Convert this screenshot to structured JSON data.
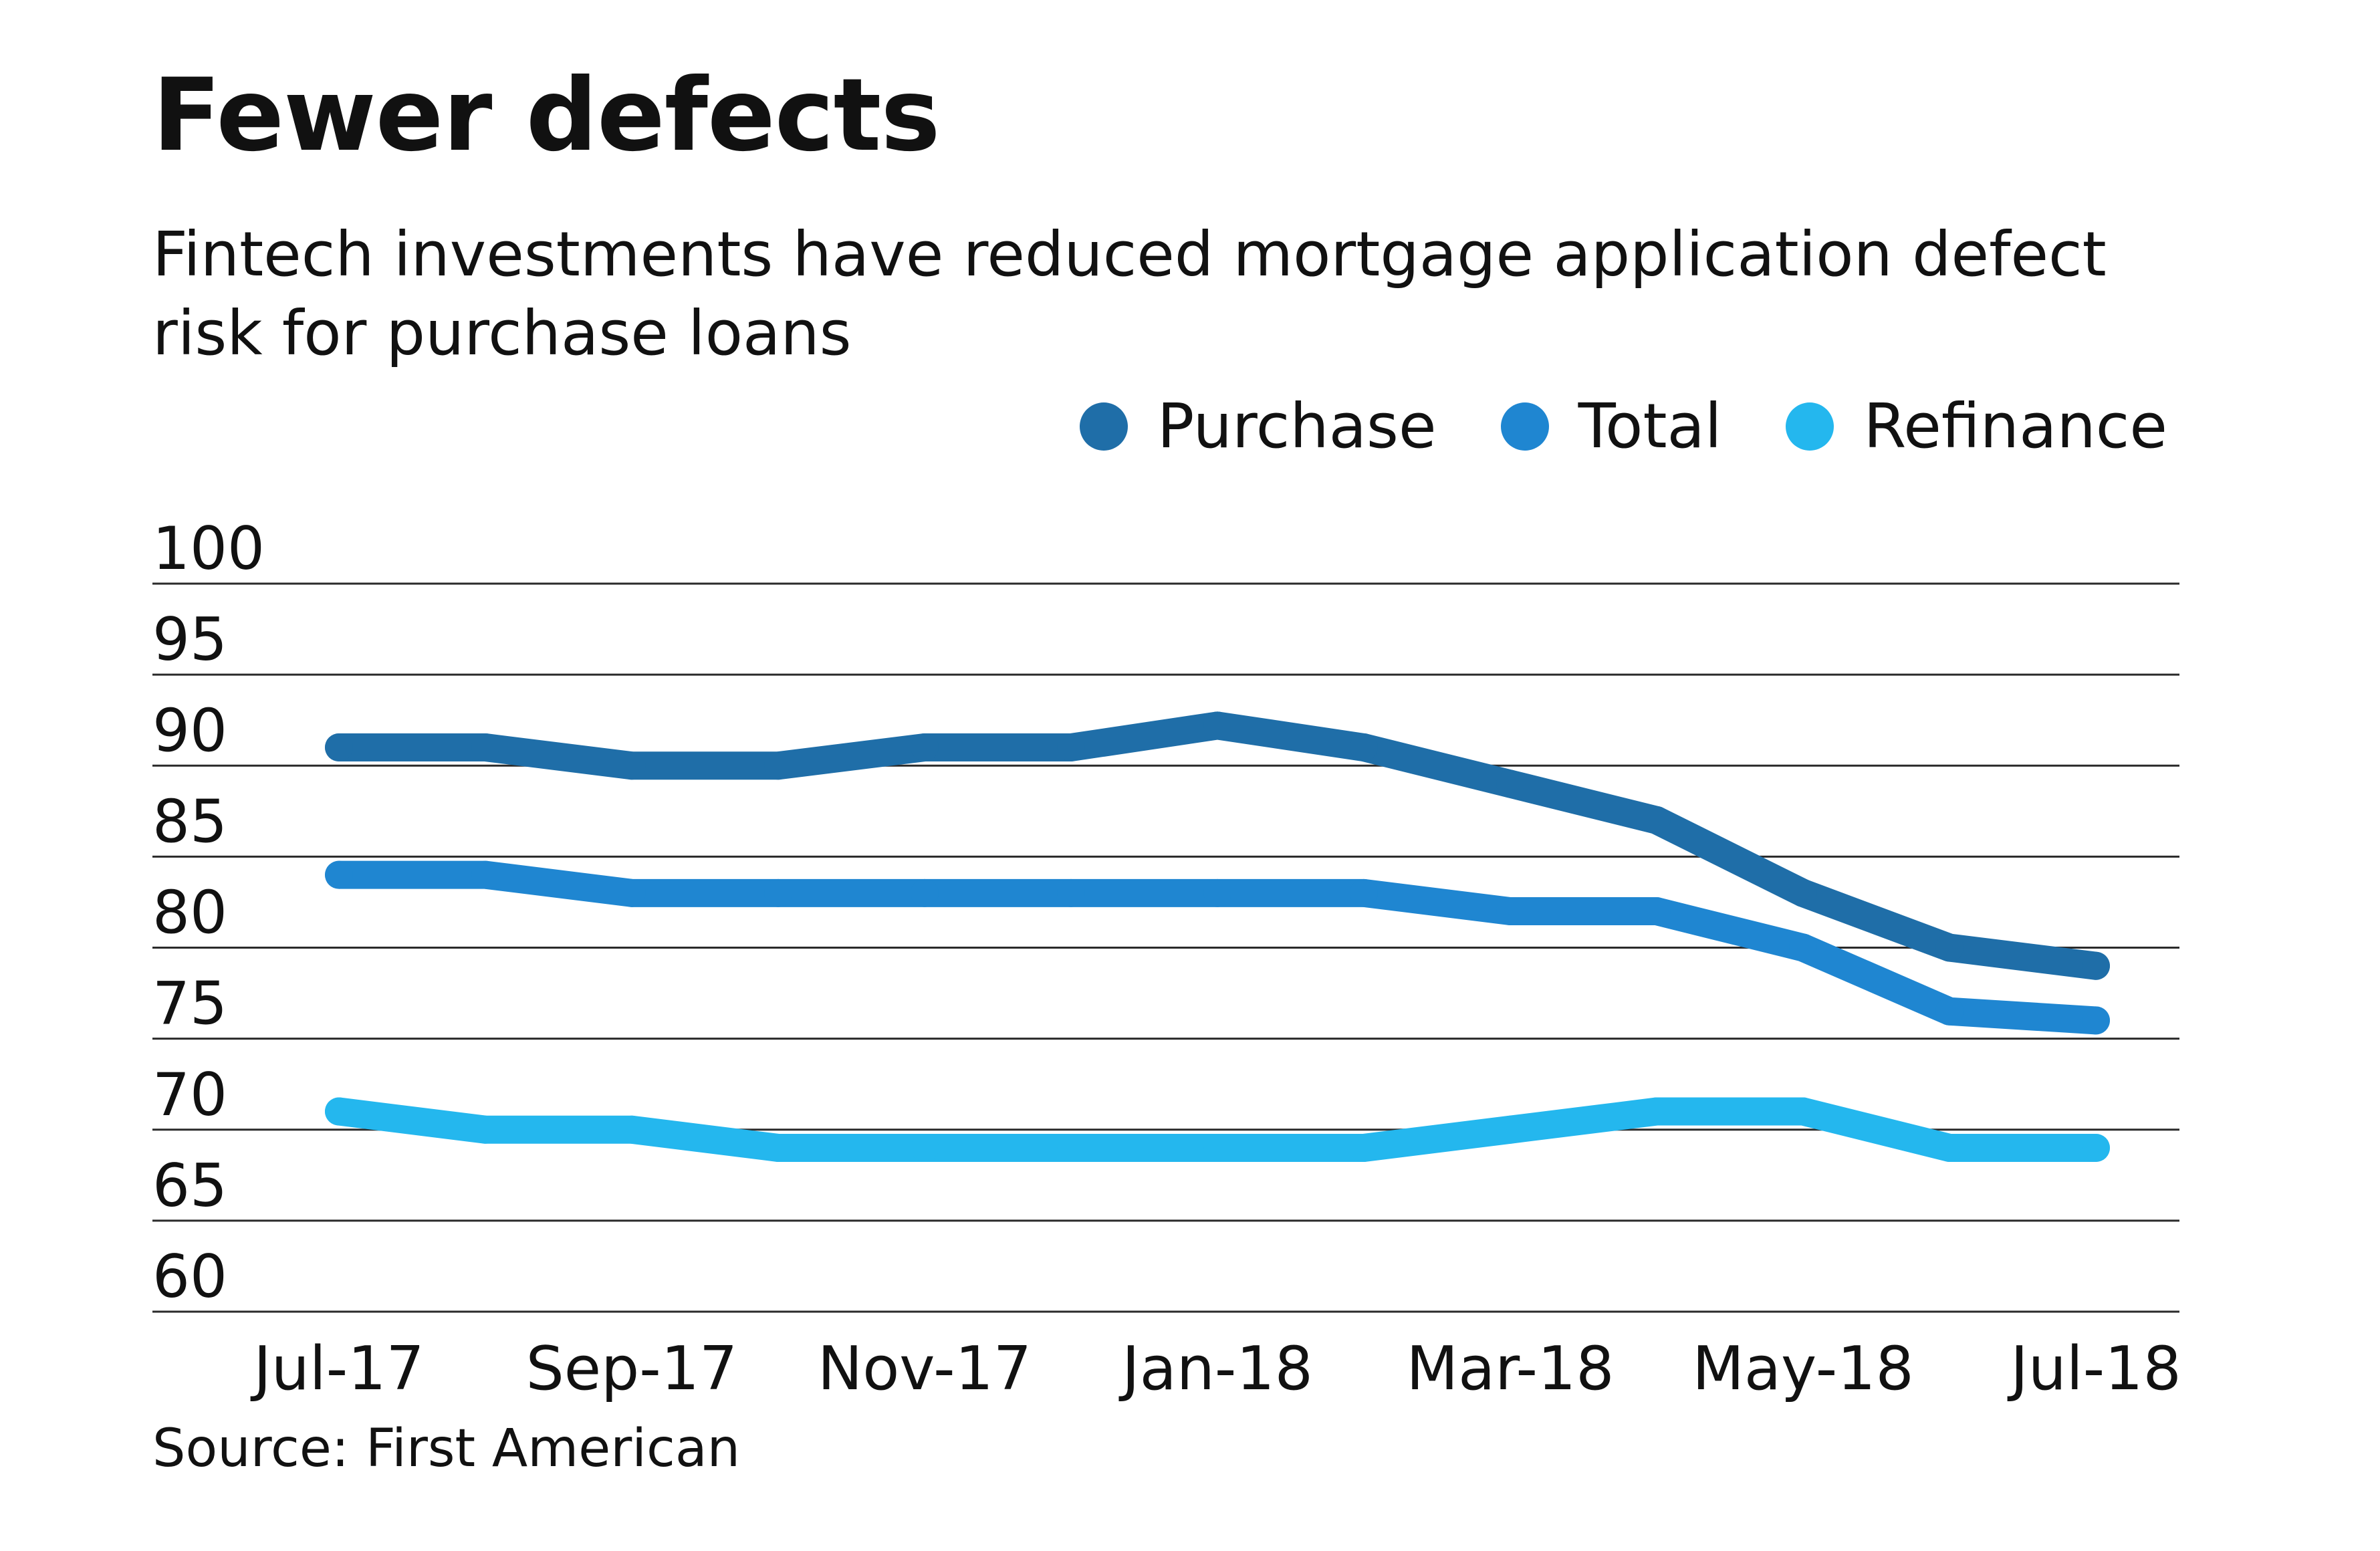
{
  "header": {
    "title": "Fewer defects",
    "subtitle": "Fintech investments have reduced mortgage application defect risk for purchase loans"
  },
  "legend": {
    "items": [
      {
        "label": "Purchase",
        "color": "#1f6ea8"
      },
      {
        "label": "Total",
        "color": "#1f86d1"
      },
      {
        "label": "Refinance",
        "color": "#24b7ee"
      }
    ]
  },
  "footer": {
    "source": "Source: First American"
  },
  "chart_data": {
    "type": "line",
    "title": "Fewer defects",
    "subtitle": "Fintech investments have reduced mortgage application defect risk for purchase loans",
    "x": [
      "Jul-17",
      "Aug-17",
      "Sep-17",
      "Oct-17",
      "Nov-17",
      "Dec-17",
      "Jan-18",
      "Feb-18",
      "Mar-18",
      "Apr-18",
      "May-18",
      "Jun-18",
      "Jul-18"
    ],
    "x_tick_labels": [
      "Jul-17",
      "Sep-17",
      "Nov-17",
      "Jan-18",
      "Mar-18",
      "May-18",
      "Jul-18"
    ],
    "ylim": [
      60,
      100
    ],
    "yticks": [
      100,
      95,
      90,
      85,
      80,
      75,
      70,
      65,
      60
    ],
    "grid": true,
    "legend_position": "top-right",
    "series": [
      {
        "name": "Purchase",
        "color": "#1f6ea8",
        "values": [
          91,
          91,
          90,
          90,
          91,
          91,
          92.2,
          91,
          89,
          87,
          83,
          80,
          79
        ]
      },
      {
        "name": "Total",
        "color": "#1f86d1",
        "values": [
          84,
          84,
          83,
          83,
          83,
          83,
          83,
          83,
          82,
          82,
          80,
          76.5,
          76
        ]
      },
      {
        "name": "Refinance",
        "color": "#24b7ee",
        "values": [
          71,
          70,
          70,
          69,
          69,
          69,
          69,
          69,
          70,
          71,
          71,
          69,
          69
        ]
      }
    ]
  }
}
